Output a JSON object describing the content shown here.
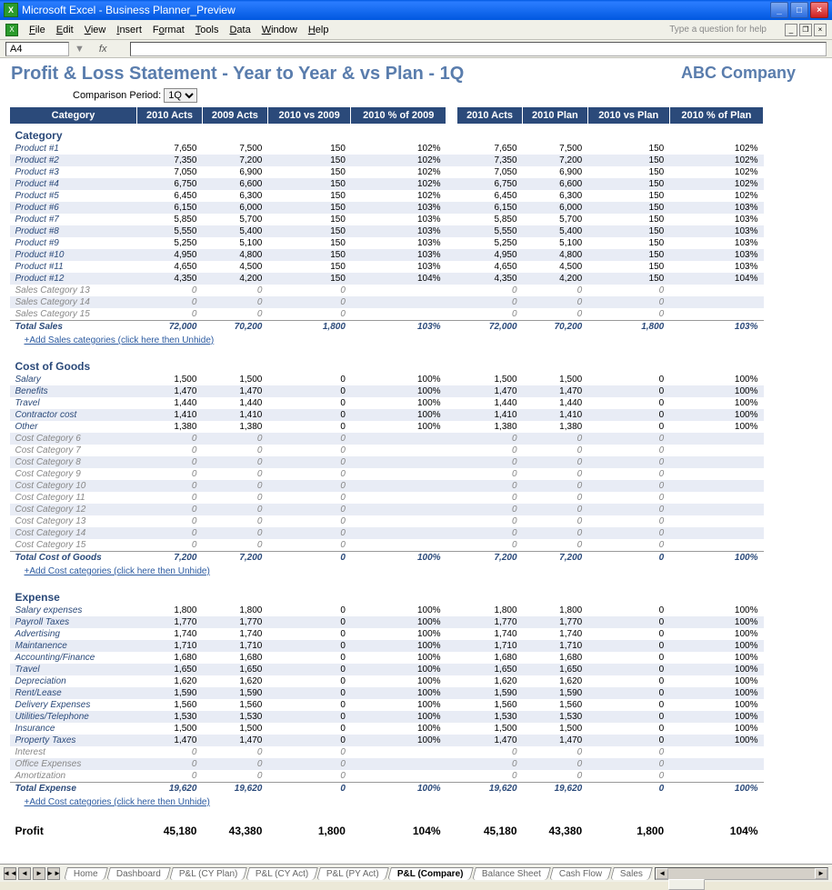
{
  "window": {
    "title": "Microsoft Excel - Business Planner_Preview",
    "helpPlaceholder": "Type a question for help"
  },
  "menu": [
    "File",
    "Edit",
    "View",
    "Insert",
    "Format",
    "Tools",
    "Data",
    "Window",
    "Help"
  ],
  "nameBox": "A4",
  "report": {
    "title": "Profit & Loss Statement - Year to Year & vs Plan - 1Q",
    "company": "ABC Company",
    "periodLabel": "Comparison Period:",
    "periodValue": "1Q"
  },
  "headers": {
    "cat": "Category",
    "c1": "2010 Acts",
    "c2": "2009 Acts",
    "c3": "2010 vs 2009",
    "c4": "2010 % of 2009",
    "c5": "2010 Acts",
    "c6": "2010 Plan",
    "c7": "2010 vs Plan",
    "c8": "2010 % of Plan"
  },
  "sections": [
    {
      "name": "Category",
      "rows": [
        [
          "Product #1",
          "7,650",
          "7,500",
          "150",
          "102%",
          "7,650",
          "7,500",
          "150",
          "102%"
        ],
        [
          "Product #2",
          "7,350",
          "7,200",
          "150",
          "102%",
          "7,350",
          "7,200",
          "150",
          "102%"
        ],
        [
          "Product #3",
          "7,050",
          "6,900",
          "150",
          "102%",
          "7,050",
          "6,900",
          "150",
          "102%"
        ],
        [
          "Product #4",
          "6,750",
          "6,600",
          "150",
          "102%",
          "6,750",
          "6,600",
          "150",
          "102%"
        ],
        [
          "Product #5",
          "6,450",
          "6,300",
          "150",
          "102%",
          "6,450",
          "6,300",
          "150",
          "102%"
        ],
        [
          "Product #6",
          "6,150",
          "6,000",
          "150",
          "103%",
          "6,150",
          "6,000",
          "150",
          "103%"
        ],
        [
          "Product #7",
          "5,850",
          "5,700",
          "150",
          "103%",
          "5,850",
          "5,700",
          "150",
          "103%"
        ],
        [
          "Product #8",
          "5,550",
          "5,400",
          "150",
          "103%",
          "5,550",
          "5,400",
          "150",
          "103%"
        ],
        [
          "Product #9",
          "5,250",
          "5,100",
          "150",
          "103%",
          "5,250",
          "5,100",
          "150",
          "103%"
        ],
        [
          "Product #10",
          "4,950",
          "4,800",
          "150",
          "103%",
          "4,950",
          "4,800",
          "150",
          "103%"
        ],
        [
          "Product #11",
          "4,650",
          "4,500",
          "150",
          "103%",
          "4,650",
          "4,500",
          "150",
          "103%"
        ],
        [
          "Product #12",
          "4,350",
          "4,200",
          "150",
          "104%",
          "4,350",
          "4,200",
          "150",
          "104%"
        ],
        [
          "Sales Category 13",
          "0",
          "0",
          "0",
          "",
          "0",
          "0",
          "0",
          ""
        ],
        [
          "Sales Category 14",
          "0",
          "0",
          "0",
          "",
          "0",
          "0",
          "0",
          ""
        ],
        [
          "Sales Category 15",
          "0",
          "0",
          "0",
          "",
          "0",
          "0",
          "0",
          ""
        ]
      ],
      "total": [
        "Total Sales",
        "72,000",
        "70,200",
        "1,800",
        "103%",
        "72,000",
        "70,200",
        "1,800",
        "103%"
      ],
      "addLink": "+Add Sales categories (click here then Unhide)"
    },
    {
      "name": "Cost of Goods",
      "rows": [
        [
          "Salary",
          "1,500",
          "1,500",
          "0",
          "100%",
          "1,500",
          "1,500",
          "0",
          "100%"
        ],
        [
          "Benefits",
          "1,470",
          "1,470",
          "0",
          "100%",
          "1,470",
          "1,470",
          "0",
          "100%"
        ],
        [
          "Travel",
          "1,440",
          "1,440",
          "0",
          "100%",
          "1,440",
          "1,440",
          "0",
          "100%"
        ],
        [
          "Contractor cost",
          "1,410",
          "1,410",
          "0",
          "100%",
          "1,410",
          "1,410",
          "0",
          "100%"
        ],
        [
          "Other",
          "1,380",
          "1,380",
          "0",
          "100%",
          "1,380",
          "1,380",
          "0",
          "100%"
        ],
        [
          "Cost Category 6",
          "0",
          "0",
          "0",
          "",
          "0",
          "0",
          "0",
          ""
        ],
        [
          "Cost Category 7",
          "0",
          "0",
          "0",
          "",
          "0",
          "0",
          "0",
          ""
        ],
        [
          "Cost Category 8",
          "0",
          "0",
          "0",
          "",
          "0",
          "0",
          "0",
          ""
        ],
        [
          "Cost Category 9",
          "0",
          "0",
          "0",
          "",
          "0",
          "0",
          "0",
          ""
        ],
        [
          "Cost Category 10",
          "0",
          "0",
          "0",
          "",
          "0",
          "0",
          "0",
          ""
        ],
        [
          "Cost Category 11",
          "0",
          "0",
          "0",
          "",
          "0",
          "0",
          "0",
          ""
        ],
        [
          "Cost Category 12",
          "0",
          "0",
          "0",
          "",
          "0",
          "0",
          "0",
          ""
        ],
        [
          "Cost Category 13",
          "0",
          "0",
          "0",
          "",
          "0",
          "0",
          "0",
          ""
        ],
        [
          "Cost Category 14",
          "0",
          "0",
          "0",
          "",
          "0",
          "0",
          "0",
          ""
        ],
        [
          "Cost Category 15",
          "0",
          "0",
          "0",
          "",
          "0",
          "0",
          "0",
          ""
        ]
      ],
      "total": [
        "Total Cost of Goods",
        "7,200",
        "7,200",
        "0",
        "100%",
        "7,200",
        "7,200",
        "0",
        "100%"
      ],
      "addLink": "+Add Cost categories (click here then Unhide)"
    },
    {
      "name": "Expense",
      "rows": [
        [
          "Salary expenses",
          "1,800",
          "1,800",
          "0",
          "100%",
          "1,800",
          "1,800",
          "0",
          "100%"
        ],
        [
          "Payroll Taxes",
          "1,770",
          "1,770",
          "0",
          "100%",
          "1,770",
          "1,770",
          "0",
          "100%"
        ],
        [
          "Advertising",
          "1,740",
          "1,740",
          "0",
          "100%",
          "1,740",
          "1,740",
          "0",
          "100%"
        ],
        [
          "Maintanence",
          "1,710",
          "1,710",
          "0",
          "100%",
          "1,710",
          "1,710",
          "0",
          "100%"
        ],
        [
          "Accounting/Finance",
          "1,680",
          "1,680",
          "0",
          "100%",
          "1,680",
          "1,680",
          "0",
          "100%"
        ],
        [
          "Travel",
          "1,650",
          "1,650",
          "0",
          "100%",
          "1,650",
          "1,650",
          "0",
          "100%"
        ],
        [
          "Depreciation",
          "1,620",
          "1,620",
          "0",
          "100%",
          "1,620",
          "1,620",
          "0",
          "100%"
        ],
        [
          "Rent/Lease",
          "1,590",
          "1,590",
          "0",
          "100%",
          "1,590",
          "1,590",
          "0",
          "100%"
        ],
        [
          "Delivery Expenses",
          "1,560",
          "1,560",
          "0",
          "100%",
          "1,560",
          "1,560",
          "0",
          "100%"
        ],
        [
          "Utilities/Telephone",
          "1,530",
          "1,530",
          "0",
          "100%",
          "1,530",
          "1,530",
          "0",
          "100%"
        ],
        [
          "Insurance",
          "1,500",
          "1,500",
          "0",
          "100%",
          "1,500",
          "1,500",
          "0",
          "100%"
        ],
        [
          "Property Taxes",
          "1,470",
          "1,470",
          "0",
          "100%",
          "1,470",
          "1,470",
          "0",
          "100%"
        ],
        [
          "Interest",
          "0",
          "0",
          "0",
          "",
          "0",
          "0",
          "0",
          ""
        ],
        [
          "Office Expenses",
          "0",
          "0",
          "0",
          "",
          "0",
          "0",
          "0",
          ""
        ],
        [
          "Amortization",
          "0",
          "0",
          "0",
          "",
          "0",
          "0",
          "0",
          ""
        ]
      ],
      "total": [
        "Total Expense",
        "19,620",
        "19,620",
        "0",
        "100%",
        "19,620",
        "19,620",
        "0",
        "100%"
      ],
      "addLink": "+Add Cost categories (click here then Unhide)"
    }
  ],
  "profit": [
    "Profit",
    "45,180",
    "43,380",
    "1,800",
    "104%",
    "45,180",
    "43,380",
    "1,800",
    "104%"
  ],
  "sheetTabs": [
    "Home",
    "Dashboard",
    "P&L (CY Plan)",
    "P&L (CY Act)",
    "P&L (PY Act)",
    "P&L (Compare)",
    "Balance Sheet",
    "Cash Flow",
    "Sales"
  ],
  "activeTab": "P&L (Compare)",
  "colors": {
    "titlebar": "#0058e0",
    "header_bg": "#2b4a7a",
    "link": "#2b4a7a",
    "alt_row": "#e8ecf5",
    "title_color": "#5a7dad"
  }
}
